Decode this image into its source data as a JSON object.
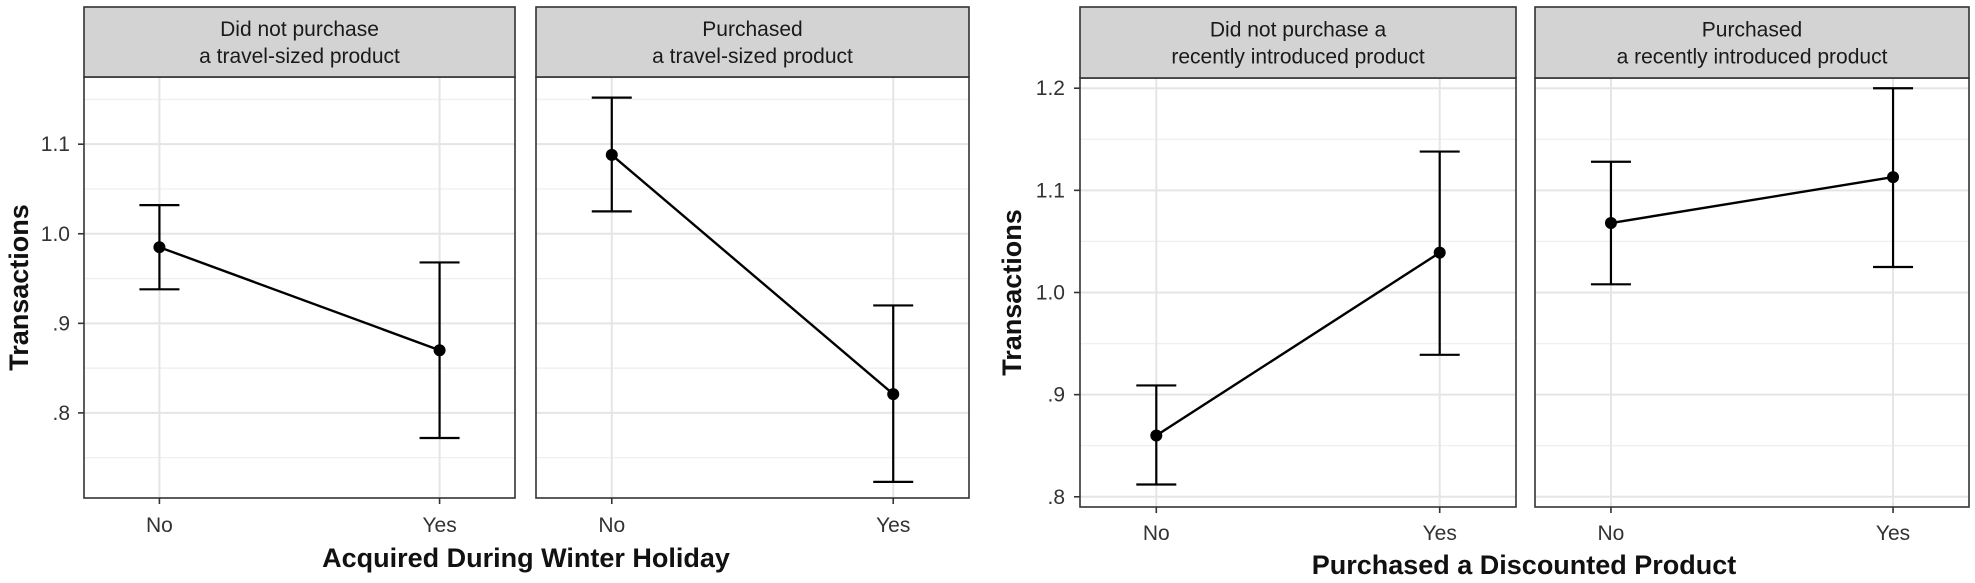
{
  "chart_data": [
    {
      "type": "line",
      "xlabel": "Acquired During Winter Holiday",
      "ylabel": "Transactions",
      "categories": [
        "No",
        "Yes"
      ],
      "ylim": [
        0.705,
        1.175
      ],
      "yticks": [
        0.8,
        0.9,
        1.0,
        1.1
      ],
      "ytick_labels": [
        ".8",
        ".9",
        "1.0",
        "1.1"
      ],
      "grid": true,
      "panels": [
        {
          "strip": [
            "Did not purchase",
            "a travel-sized product"
          ],
          "values": [
            0.985,
            0.87
          ],
          "err_low": [
            0.938,
            0.772
          ],
          "err_high": [
            1.032,
            0.968
          ]
        },
        {
          "strip": [
            "Purchased",
            "a travel-sized product"
          ],
          "values": [
            1.088,
            0.821
          ],
          "err_low": [
            1.025,
            0.723
          ],
          "err_high": [
            1.152,
            0.92
          ]
        }
      ]
    },
    {
      "type": "line",
      "xlabel": "Purchased a Discounted Product",
      "ylabel": "Transactions",
      "categories": [
        "No",
        "Yes"
      ],
      "ylim": [
        0.79,
        1.21
      ],
      "yticks": [
        0.8,
        0.9,
        1.0,
        1.1,
        1.2
      ],
      "ytick_labels": [
        ".8",
        ".9",
        "1.0",
        "1.1",
        "1.2"
      ],
      "grid": true,
      "panels": [
        {
          "strip": [
            "Did not purchase a",
            "recently introduced product"
          ],
          "values": [
            0.86,
            1.039
          ],
          "err_low": [
            0.812,
            0.939
          ],
          "err_high": [
            0.909,
            1.138
          ]
        },
        {
          "strip": [
            "Purchased",
            "a recently introduced product"
          ],
          "values": [
            1.068,
            1.113
          ],
          "err_low": [
            1.008,
            1.025
          ],
          "err_high": [
            1.128,
            1.2
          ]
        }
      ]
    }
  ]
}
